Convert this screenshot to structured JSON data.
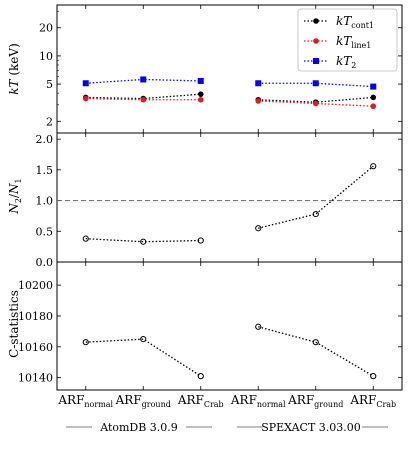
{
  "chart_data": [
    {
      "type": "line",
      "panel": "temperature",
      "ylabel": "kT (keV)",
      "yscale": "log",
      "ylim": [
        1.5,
        35
      ],
      "yticks": [
        {
          "value": 2,
          "label": "2"
        },
        {
          "value": 5,
          "label": "5"
        },
        {
          "value": 10,
          "label": "10"
        },
        {
          "value": 20,
          "label": "20"
        }
      ],
      "grid": false,
      "legend_position": "top-right",
      "x": [
        1,
        2,
        3,
        4,
        5,
        6
      ],
      "series": [
        {
          "name": "kT_cont1",
          "label_main": "kT",
          "label_sub": "cont1",
          "color": "#000000",
          "marker": "circle",
          "groups": [
            [
              3.6,
              3.5,
              3.9
            ],
            [
              3.4,
              3.2,
              3.6
            ]
          ]
        },
        {
          "name": "kT_line1",
          "label_main": "kT",
          "label_sub": "line1",
          "color": "#e41a1c",
          "marker": "circle",
          "groups": [
            [
              3.5,
              3.4,
              3.4
            ],
            [
              3.3,
              3.1,
              2.9
            ]
          ]
        },
        {
          "name": "kT_2",
          "label_main": "kT",
          "label_sub": "2",
          "color": "#0000ff",
          "marker": "square",
          "groups": [
            [
              5.1,
              5.6,
              5.4
            ],
            [
              5.1,
              5.1,
              4.7
            ]
          ]
        }
      ]
    },
    {
      "type": "line",
      "panel": "ratio",
      "ylabel": "N2/N1",
      "ylim": [
        0.0,
        2.1
      ],
      "yticks": [
        {
          "value": 0.0,
          "label": "0.0"
        },
        {
          "value": 0.5,
          "label": "0.5"
        },
        {
          "value": 1.0,
          "label": "1.0"
        },
        {
          "value": 1.5,
          "label": "1.5"
        },
        {
          "value": 2.0,
          "label": "2.0"
        }
      ],
      "reference_line": 1.0,
      "x": [
        1,
        2,
        3,
        4,
        5,
        6
      ],
      "series": [
        {
          "color": "#000000",
          "marker": "open-circle",
          "groups": [
            [
              0.38,
              0.33,
              0.35
            ],
            [
              0.55,
              0.78,
              1.56
            ]
          ]
        }
      ]
    },
    {
      "type": "line",
      "panel": "cstat",
      "ylabel": "C-statistics",
      "ylim": [
        10132,
        10215
      ],
      "yticks": [
        {
          "value": 10140,
          "label": "10140"
        },
        {
          "value": 10160,
          "label": "10160"
        },
        {
          "value": 10180,
          "label": "10180"
        },
        {
          "value": 10200,
          "label": "10200"
        }
      ],
      "x": [
        1,
        2,
        3,
        4,
        5,
        6
      ],
      "series": [
        {
          "color": "#000000",
          "marker": "open-circle",
          "groups": [
            [
              10163,
              10165,
              10141
            ],
            [
              10173,
              10163,
              10141
            ]
          ]
        }
      ]
    }
  ],
  "x_categories": [
    {
      "main": "ARF",
      "sub": "normal"
    },
    {
      "main": "ARF",
      "sub": "ground"
    },
    {
      "main": "ARF",
      "sub": "Crab"
    },
    {
      "main": "ARF",
      "sub": "normal"
    },
    {
      "main": "ARF",
      "sub": "ground"
    },
    {
      "main": "ARF",
      "sub": "Crab"
    }
  ],
  "groups": [
    {
      "label": "AtomDB 3.0.9"
    },
    {
      "label": "SPEXACT 3.03.00"
    }
  ],
  "ylabel_texts": {
    "temperature": {
      "main": "kT",
      "unit": " (keV)"
    },
    "ratio": {
      "a": "N",
      "a_sub": "2",
      "slash": "/",
      "b": "N",
      "b_sub": "1"
    },
    "cstat": "C-statistics"
  }
}
